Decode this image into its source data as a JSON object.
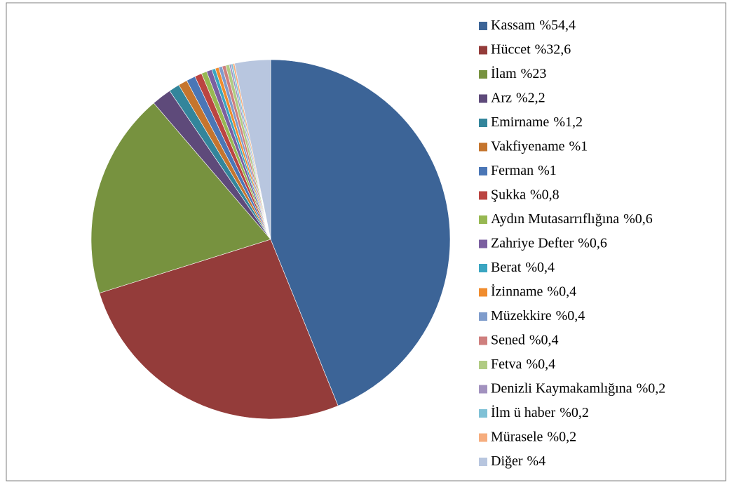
{
  "chart_data": {
    "type": "pie",
    "categories": [
      "Kassam",
      "Hüccet",
      "İlam",
      "Arz",
      "Emirname",
      "Vakfiyename",
      "Ferman",
      "Şukka",
      "Aydın Mutasarrıflığına",
      "Zahriye Defter",
      "Berat",
      "İzinname",
      "Müzekkire",
      "Sened",
      "Fetva",
      "Denizli Kaymakamlığına",
      "İlm ü haber",
      "Mürasele",
      "Diğer"
    ],
    "values": [
      54.4,
      32.6,
      23,
      2.2,
      1.2,
      1,
      1,
      0.8,
      0.6,
      0.6,
      0.4,
      0.4,
      0.4,
      0.4,
      0.4,
      0.2,
      0.2,
      0.2,
      4
    ],
    "value_labels": [
      "%54,4",
      "%32,6",
      "%23",
      "%2,2",
      "%1,2",
      "%1",
      "%1",
      "%0,8",
      "%0,6",
      "%0,6",
      "%0,4",
      "%0,4",
      "%0,4",
      "%0,4",
      "%0,4",
      "%0,2",
      "%0,2",
      "%0,2",
      "%4"
    ],
    "colors": [
      "#3c6497",
      "#943c3a",
      "#77923f",
      "#5e4a7a",
      "#33859b",
      "#c5752e",
      "#4a76b6",
      "#bb4441",
      "#97b852",
      "#7b5fa0",
      "#3aa5c1",
      "#f08c2e",
      "#7f9ccc",
      "#cf7f7e",
      "#b0cb83",
      "#a292bf",
      "#7fc1d6",
      "#f6ad7e",
      "#b8c6df"
    ],
    "legend": "right"
  }
}
